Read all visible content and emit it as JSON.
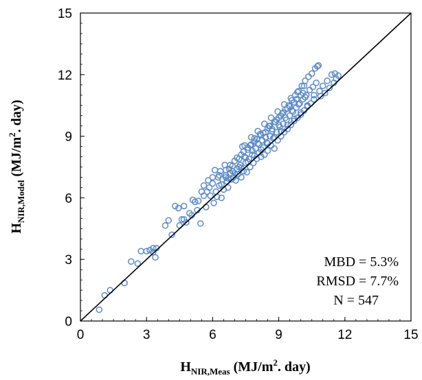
{
  "chart_data": {
    "type": "scatter",
    "title": "",
    "xlabel": {
      "main": "H",
      "sub": "NIR,Meas",
      "text": " (MJ/m",
      "sup": "2",
      "tail": ". day)"
    },
    "ylabel": {
      "main": "H",
      "sub": "NIR,Model",
      "text": " (MJ/m",
      "sup": "2",
      "tail": ". day)"
    },
    "xlim": [
      0,
      15
    ],
    "ylim": [
      0,
      15
    ],
    "xticks": [
      "0",
      "3",
      "6",
      "9",
      "12",
      "15"
    ],
    "yticks": [
      "0",
      "3",
      "6",
      "9",
      "12",
      "15"
    ],
    "grid": false,
    "legend": "none",
    "reference_line": {
      "from": [
        0,
        0
      ],
      "to": [
        15,
        15
      ]
    },
    "stats": [
      "MBD = 5.3%",
      "RMSD = 7.7%",
      "N = 547"
    ],
    "colors": {
      "marker": "#5b8ac7",
      "line": "#000000"
    },
    "marker": "open-circle",
    "series": [
      {
        "values": [
          [
            0.85,
            0.55
          ],
          [
            1.1,
            1.25
          ],
          [
            1.35,
            1.5
          ],
          [
            2.0,
            1.85
          ],
          [
            2.3,
            2.9
          ],
          [
            2.6,
            2.8
          ],
          [
            2.75,
            3.4
          ],
          [
            3.0,
            3.4
          ],
          [
            3.15,
            3.45
          ],
          [
            3.3,
            3.55
          ],
          [
            3.45,
            3.55
          ],
          [
            3.4,
            3.1
          ],
          [
            3.3,
            3.35
          ],
          [
            3.85,
            4.65
          ],
          [
            4.0,
            4.9
          ],
          [
            4.15,
            4.2
          ],
          [
            4.3,
            5.6
          ],
          [
            4.45,
            5.5
          ],
          [
            4.5,
            4.65
          ],
          [
            4.6,
            4.95
          ],
          [
            4.7,
            4.95
          ],
          [
            4.8,
            4.8
          ],
          [
            4.7,
            5.6
          ],
          [
            4.95,
            5.25
          ],
          [
            5.05,
            5.15
          ],
          [
            5.1,
            5.9
          ],
          [
            5.2,
            5.8
          ],
          [
            5.3,
            5.4
          ],
          [
            5.35,
            5.85
          ],
          [
            5.45,
            4.75
          ],
          [
            5.5,
            6.3
          ],
          [
            5.6,
            6.1
          ],
          [
            5.7,
            5.55
          ],
          [
            5.75,
            6.3
          ],
          [
            5.85,
            6.5
          ],
          [
            5.9,
            6.1
          ],
          [
            6.0,
            6.7
          ],
          [
            6.05,
            5.75
          ],
          [
            6.1,
            7.35
          ],
          [
            6.15,
            6.3
          ],
          [
            6.2,
            6.05
          ],
          [
            6.25,
            7.0
          ],
          [
            6.3,
            6.6
          ],
          [
            6.35,
            7.3
          ],
          [
            6.4,
            6.0
          ],
          [
            6.45,
            6.9
          ],
          [
            6.5,
            6.4
          ],
          [
            6.55,
            7.6
          ],
          [
            6.6,
            7.1
          ],
          [
            6.65,
            6.8
          ],
          [
            6.7,
            6.5
          ],
          [
            6.75,
            7.4
          ],
          [
            6.8,
            7.2
          ],
          [
            6.85,
            6.9
          ],
          [
            6.9,
            7.55
          ],
          [
            6.95,
            7.0
          ],
          [
            7.0,
            7.8
          ],
          [
            7.05,
            6.85
          ],
          [
            7.1,
            7.4
          ],
          [
            7.15,
            7.15
          ],
          [
            7.2,
            7.9
          ],
          [
            7.25,
            7.6
          ],
          [
            7.3,
            7.0
          ],
          [
            7.35,
            8.5
          ],
          [
            7.4,
            7.3
          ],
          [
            7.45,
            8.0
          ],
          [
            7.5,
            7.7
          ],
          [
            7.55,
            7.25
          ],
          [
            7.6,
            8.35
          ],
          [
            7.65,
            7.9
          ],
          [
            7.7,
            7.5
          ],
          [
            7.75,
            8.6
          ],
          [
            7.8,
            8.1
          ],
          [
            7.85,
            7.7
          ],
          [
            7.9,
            8.9
          ],
          [
            7.95,
            8.4
          ],
          [
            8.0,
            7.9
          ],
          [
            8.05,
            8.65
          ],
          [
            8.1,
            8.2
          ],
          [
            8.15,
            9.1
          ],
          [
            8.2,
            8.0
          ],
          [
            8.25,
            8.8
          ],
          [
            8.3,
            8.45
          ],
          [
            8.35,
            8.1
          ],
          [
            8.4,
            9.2
          ],
          [
            8.45,
            8.7
          ],
          [
            8.5,
            8.3
          ],
          [
            8.55,
            9.5
          ],
          [
            8.6,
            9.0
          ],
          [
            8.65,
            8.55
          ],
          [
            8.7,
            9.35
          ],
          [
            8.75,
            8.9
          ],
          [
            8.8,
            8.4
          ],
          [
            8.85,
            9.7
          ],
          [
            8.9,
            9.2
          ],
          [
            8.95,
            8.8
          ],
          [
            9.0,
            9.9
          ],
          [
            9.05,
            9.45
          ],
          [
            9.1,
            9.0
          ],
          [
            9.15,
            10.1
          ],
          [
            9.2,
            9.6
          ],
          [
            9.25,
            9.2
          ],
          [
            9.3,
            10.3
          ],
          [
            9.35,
            9.8
          ],
          [
            9.4,
            9.35
          ],
          [
            9.45,
            10.5
          ],
          [
            9.5,
            10.0
          ],
          [
            9.55,
            9.55
          ],
          [
            9.6,
            10.75
          ],
          [
            9.65,
            10.2
          ],
          [
            9.7,
            9.75
          ],
          [
            9.75,
            11.0
          ],
          [
            9.8,
            10.4
          ],
          [
            9.85,
            9.9
          ],
          [
            9.9,
            11.2
          ],
          [
            9.95,
            10.6
          ],
          [
            10.0,
            10.05
          ],
          [
            10.05,
            11.45
          ],
          [
            10.1,
            10.8
          ],
          [
            10.15,
            10.25
          ],
          [
            10.2,
            11.7
          ],
          [
            10.25,
            11.0
          ],
          [
            10.3,
            10.45
          ],
          [
            10.35,
            11.9
          ],
          [
            10.4,
            11.25
          ],
          [
            10.45,
            10.6
          ],
          [
            10.5,
            12.05
          ],
          [
            10.55,
            11.4
          ],
          [
            10.6,
            10.8
          ],
          [
            10.65,
            12.3
          ],
          [
            10.7,
            11.6
          ],
          [
            10.75,
            12.4
          ],
          [
            10.8,
            12.45
          ],
          [
            10.85,
            11.2
          ],
          [
            10.9,
            10.95
          ],
          [
            11.0,
            11.45
          ],
          [
            11.1,
            11.1
          ],
          [
            11.2,
            11.7
          ],
          [
            11.3,
            11.35
          ],
          [
            11.4,
            12.0
          ],
          [
            11.5,
            11.6
          ],
          [
            11.55,
            12.05
          ],
          [
            11.6,
            11.8
          ],
          [
            11.7,
            11.95
          ],
          [
            6.6,
            7.0
          ],
          [
            6.9,
            7.3
          ],
          [
            7.2,
            7.5
          ],
          [
            7.5,
            7.95
          ],
          [
            7.8,
            8.3
          ],
          [
            8.1,
            8.6
          ],
          [
            8.4,
            8.95
          ],
          [
            8.7,
            9.25
          ],
          [
            9.0,
            9.55
          ],
          [
            9.3,
            9.9
          ],
          [
            9.6,
            10.25
          ],
          [
            9.9,
            10.55
          ],
          [
            10.2,
            10.9
          ],
          [
            6.8,
            7.6
          ],
          [
            7.1,
            7.95
          ],
          [
            7.4,
            8.25
          ],
          [
            7.7,
            8.55
          ],
          [
            8.0,
            8.85
          ],
          [
            8.3,
            9.15
          ],
          [
            8.6,
            9.5
          ],
          [
            8.9,
            9.8
          ],
          [
            9.2,
            10.15
          ],
          [
            9.5,
            10.45
          ],
          [
            9.8,
            10.8
          ],
          [
            10.1,
            11.1
          ],
          [
            7.3,
            8.1
          ],
          [
            7.6,
            8.45
          ],
          [
            7.9,
            8.75
          ],
          [
            8.2,
            9.05
          ],
          [
            8.5,
            9.4
          ],
          [
            8.8,
            9.7
          ],
          [
            9.1,
            10.0
          ],
          [
            9.4,
            10.35
          ],
          [
            9.7,
            10.65
          ],
          [
            10.0,
            11.0
          ],
          [
            6.4,
            6.65
          ],
          [
            6.7,
            6.95
          ],
          [
            7.0,
            7.2
          ],
          [
            7.3,
            7.45
          ],
          [
            7.6,
            7.75
          ],
          [
            7.9,
            8.05
          ],
          [
            8.2,
            8.35
          ],
          [
            8.5,
            8.65
          ],
          [
            8.8,
            8.95
          ],
          [
            9.1,
            9.25
          ],
          [
            9.4,
            9.55
          ],
          [
            9.7,
            9.85
          ],
          [
            10.0,
            10.15
          ],
          [
            10.3,
            10.5
          ],
          [
            10.6,
            11.0
          ],
          [
            6.3,
            7.1
          ],
          [
            6.6,
            7.35
          ],
          [
            5.8,
            6.85
          ],
          [
            6.0,
            7.0
          ],
          [
            5.6,
            6.6
          ],
          [
            7.45,
            8.55
          ],
          [
            7.75,
            8.95
          ],
          [
            8.05,
            9.25
          ],
          [
            8.35,
            9.6
          ],
          [
            8.65,
            9.9
          ],
          [
            8.95,
            10.2
          ],
          [
            9.25,
            10.55
          ],
          [
            9.55,
            10.85
          ],
          [
            9.85,
            11.15
          ],
          [
            10.15,
            11.45
          ]
        ]
      }
    ]
  }
}
